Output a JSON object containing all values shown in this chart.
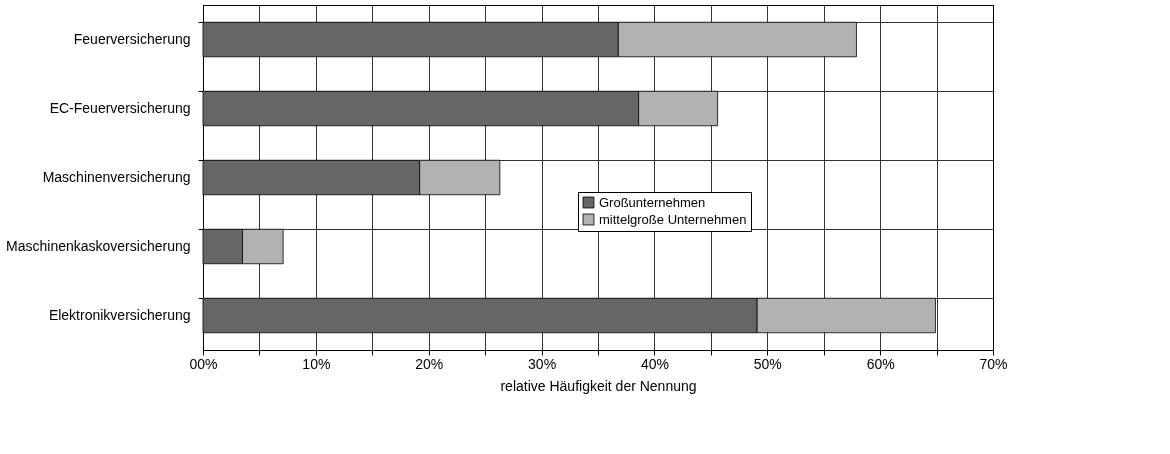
{
  "chart_data": {
    "type": "bar",
    "orientation": "horizontal",
    "stacked": true,
    "categories": [
      "Feuerversicherung",
      "EC-Feuerversicherung",
      "Maschinenversicherung",
      "Maschinenkaskoversicherung",
      "Elektronikversicherung"
    ],
    "series": [
      {
        "name": "Großunternehmen",
        "color": "#666666",
        "values": [
          36.8,
          38.6,
          19.2,
          3.5,
          49.1
        ]
      },
      {
        "name": "mittelgroße Unternehmen",
        "color": "#b2b2b2",
        "values": [
          21.1,
          7.0,
          7.1,
          3.6,
          15.8
        ]
      }
    ],
    "xlabel": "relative Häufigkeit der Nennung",
    "xlim": [
      0,
      70
    ],
    "xticks": [
      {
        "value": 0,
        "label": "00%"
      },
      {
        "value": 5,
        "label": null
      },
      {
        "value": 10,
        "label": "10%"
      },
      {
        "value": 15,
        "label": null
      },
      {
        "value": 20,
        "label": "20%"
      },
      {
        "value": 25,
        "label": null
      },
      {
        "value": 30,
        "label": "30%"
      },
      {
        "value": 35,
        "label": null
      },
      {
        "value": 40,
        "label": "40%"
      },
      {
        "value": 45,
        "label": null
      },
      {
        "value": 50,
        "label": "50%"
      },
      {
        "value": 55,
        "label": null
      },
      {
        "value": 60,
        "label": "60%"
      },
      {
        "value": 65,
        "label": null
      },
      {
        "value": 70,
        "label": "70%"
      }
    ],
    "grid": true,
    "legend": "right"
  }
}
